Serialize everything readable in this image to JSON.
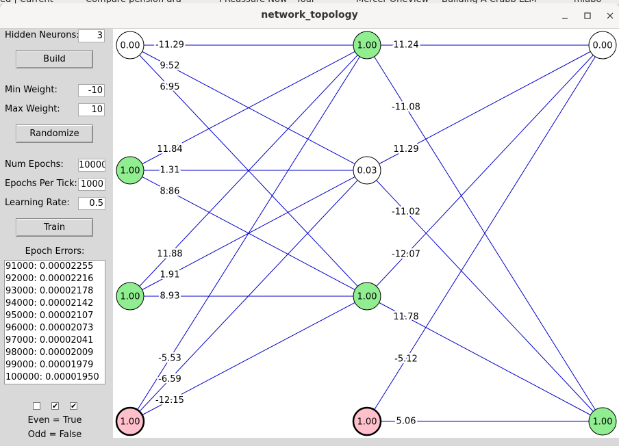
{
  "browser_tabs": [
    "ed | Current",
    "Compare pension dra",
    "PReassure Now - Your",
    "Mercer OneView",
    "Building A Crabb LLM",
    "mlabo"
  ],
  "window": {
    "title": "network_topology"
  },
  "hidden_neurons": {
    "label": "Hidden Neurons:",
    "value": "3"
  },
  "build_button": "Build",
  "weight_fields": [
    {
      "label": "Min Weight:",
      "value": "-10"
    },
    {
      "label": "Max Weight:",
      "value": "10"
    }
  ],
  "randomize_button": "Randomize",
  "training_fields": [
    {
      "label": "Num Epochs:",
      "value": "10000"
    },
    {
      "label": "Epochs Per Tick:",
      "value": "1000"
    },
    {
      "label": "Learning Rate:",
      "value": "0.5"
    }
  ],
  "train_button": "Train",
  "epoch_errors": {
    "title": "Epoch Errors:",
    "lines": [
      "91000: 0.00002255",
      "92000: 0.00002216",
      "93000: 0.00002178",
      "94000: 0.00002142",
      "95000: 0.00002107",
      "96000: 0.00002073",
      "97000: 0.00002041",
      "98000: 0.00002009",
      "99000: 0.00001979",
      "100000: 0.00001950"
    ]
  },
  "checkboxes": [
    false,
    true,
    true
  ],
  "results": [
    "Even = True",
    "Odd = False"
  ],
  "network": {
    "layers": [
      [
        {
          "value": "0.00",
          "state": "off"
        },
        {
          "value": "1.00",
          "state": "on"
        },
        {
          "value": "1.00",
          "state": "on"
        },
        {
          "value": "1.00",
          "state": "bias"
        }
      ],
      [
        {
          "value": "1.00",
          "state": "on"
        },
        {
          "value": "0.03",
          "state": "off"
        },
        {
          "value": "1.00",
          "state": "on"
        },
        {
          "value": "1.00",
          "state": "bias"
        }
      ],
      [
        {
          "value": "0.00",
          "state": "off"
        },
        {
          "value": "1.00",
          "state": "on"
        }
      ]
    ],
    "edges": [
      {
        "from": [
          0,
          0
        ],
        "to": [
          1,
          0
        ],
        "weight": "-11.29"
      },
      {
        "from": [
          0,
          0
        ],
        "to": [
          1,
          1
        ],
        "weight": "9.52"
      },
      {
        "from": [
          0,
          0
        ],
        "to": [
          1,
          2
        ],
        "weight": "6.95"
      },
      {
        "from": [
          0,
          1
        ],
        "to": [
          1,
          0
        ],
        "weight": "11.84"
      },
      {
        "from": [
          0,
          1
        ],
        "to": [
          1,
          1
        ],
        "weight": "1.31"
      },
      {
        "from": [
          0,
          1
        ],
        "to": [
          1,
          2
        ],
        "weight": "8.86"
      },
      {
        "from": [
          0,
          2
        ],
        "to": [
          1,
          0
        ],
        "weight": "11.88"
      },
      {
        "from": [
          0,
          2
        ],
        "to": [
          1,
          1
        ],
        "weight": "1.91"
      },
      {
        "from": [
          0,
          2
        ],
        "to": [
          1,
          2
        ],
        "weight": "8.93"
      },
      {
        "from": [
          0,
          3
        ],
        "to": [
          1,
          0
        ],
        "weight": "-5.53"
      },
      {
        "from": [
          0,
          3
        ],
        "to": [
          1,
          1
        ],
        "weight": "-6.59"
      },
      {
        "from": [
          0,
          3
        ],
        "to": [
          1,
          2
        ],
        "weight": "-12.15"
      },
      {
        "from": [
          1,
          0
        ],
        "to": [
          2,
          0
        ],
        "weight": "11.24"
      },
      {
        "from": [
          1,
          0
        ],
        "to": [
          2,
          1
        ],
        "weight": "-11.08"
      },
      {
        "from": [
          1,
          1
        ],
        "to": [
          2,
          0
        ],
        "weight": "11.29"
      },
      {
        "from": [
          1,
          1
        ],
        "to": [
          2,
          1
        ],
        "weight": "-11.02"
      },
      {
        "from": [
          1,
          2
        ],
        "to": [
          2,
          0
        ],
        "weight": "-12.07"
      },
      {
        "from": [
          1,
          2
        ],
        "to": [
          2,
          1
        ],
        "weight": "11.78"
      },
      {
        "from": [
          1,
          3
        ],
        "to": [
          2,
          0
        ],
        "weight": "-5.12"
      },
      {
        "from": [
          1,
          3
        ],
        "to": [
          2,
          1
        ],
        "weight": "5.06"
      }
    ]
  }
}
